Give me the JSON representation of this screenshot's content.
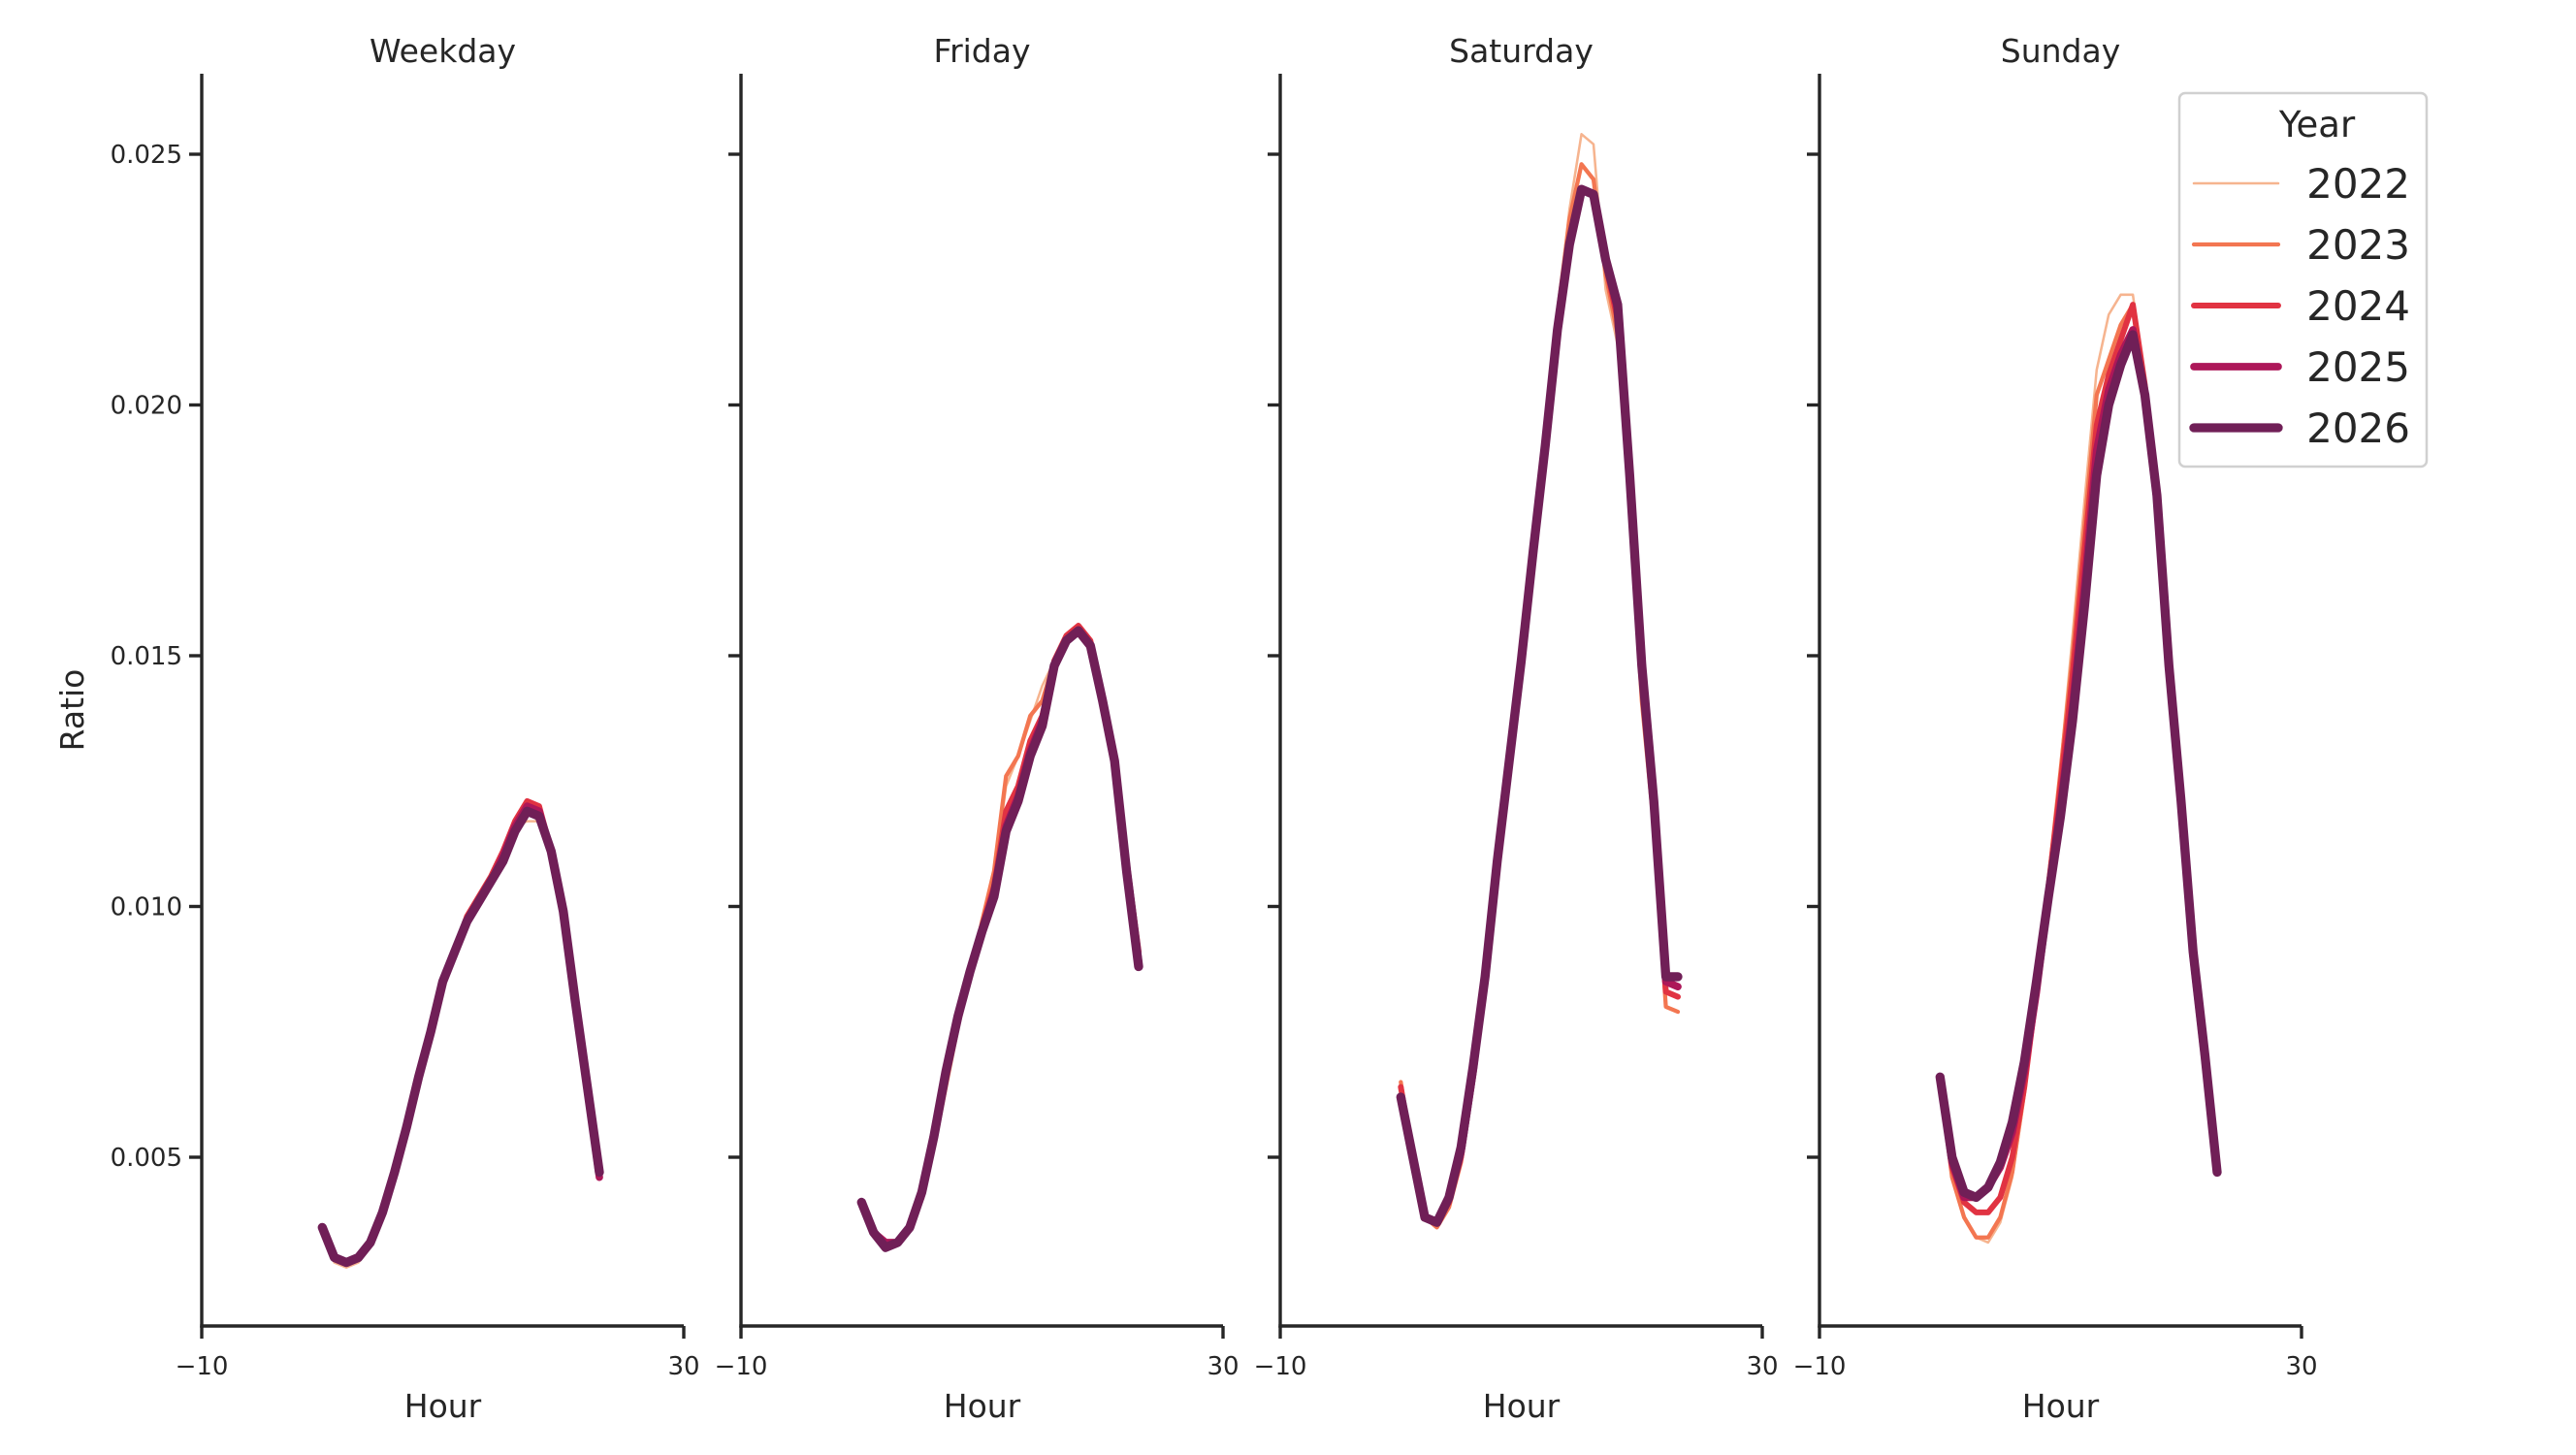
{
  "chart_data": {
    "type": "line",
    "title": "",
    "xlabel": "Hour",
    "ylabel": "Ratio",
    "xlim": [
      -10,
      30
    ],
    "ylim": [
      0.0017,
      0.0266
    ],
    "x_ticks": [
      -10,
      30
    ],
    "y_ticks": [
      0.005,
      0.01,
      0.015,
      0.02,
      0.025
    ],
    "y_tick_labels": [
      "0.005",
      "0.010",
      "0.015",
      "0.020",
      "0.025"
    ],
    "x_tick_labels": [
      "−10",
      "30"
    ],
    "grid": false,
    "legend": {
      "title": "Year",
      "position": "upper right",
      "entries": [
        {
          "label": "2022",
          "color": "#f6b48f",
          "width": 1.5
        },
        {
          "label": "2023",
          "color": "#f37651",
          "width": 2.5
        },
        {
          "label": "2024",
          "color": "#e13342",
          "width": 3.5
        },
        {
          "label": "2025",
          "color": "#ad1759",
          "width": 4.5
        },
        {
          "label": "2026",
          "color": "#701f57",
          "width": 5.5
        }
      ]
    },
    "x": [
      0,
      1,
      2,
      3,
      4,
      5,
      6,
      7,
      8,
      9,
      10,
      11,
      12,
      13,
      14,
      15,
      16,
      17,
      18,
      19,
      20,
      21,
      22,
      23
    ],
    "panels": [
      {
        "title": "Weekday",
        "series": [
          {
            "name": "2022",
            "values": [
              0.0036,
              0.0029,
              0.0028,
              0.0029,
              0.0032,
              0.0038,
              0.0046,
              0.0055,
              0.0065,
              0.0074,
              0.0085,
              0.0091,
              0.0098,
              0.0102,
              0.0106,
              0.011,
              0.0116,
              0.0117,
              0.0117,
              0.0111,
              0.0099,
              0.0081,
              0.0064,
              0.0046
            ]
          },
          {
            "name": "2023",
            "values": [
              0.0036,
              0.003,
              0.0029,
              0.003,
              0.0033,
              0.0039,
              0.0047,
              0.0056,
              0.0066,
              0.0075,
              0.0085,
              0.0091,
              0.0098,
              0.0102,
              0.0106,
              0.0111,
              0.0117,
              0.0121,
              0.012,
              0.0111,
              0.0099,
              0.0081,
              0.0064,
              0.0046
            ]
          },
          {
            "name": "2024",
            "values": [
              0.0036,
              0.003,
              0.0029,
              0.003,
              0.0033,
              0.0039,
              0.0047,
              0.0056,
              0.0066,
              0.0075,
              0.0085,
              0.0091,
              0.0098,
              0.0102,
              0.0106,
              0.0111,
              0.0117,
              0.0121,
              0.012,
              0.0111,
              0.0099,
              0.0081,
              0.0064,
              0.0046
            ]
          },
          {
            "name": "2025",
            "values": [
              0.0036,
              0.003,
              0.0029,
              0.003,
              0.0033,
              0.0039,
              0.0047,
              0.0056,
              0.0066,
              0.0075,
              0.0085,
              0.0091,
              0.0097,
              0.0101,
              0.0105,
              0.011,
              0.0116,
              0.012,
              0.0119,
              0.0111,
              0.0099,
              0.0081,
              0.0064,
              0.0046
            ]
          },
          {
            "name": "2026",
            "values": [
              0.0036,
              0.003,
              0.0029,
              0.003,
              0.0033,
              0.0039,
              0.0047,
              0.0056,
              0.0066,
              0.0075,
              0.0085,
              0.0091,
              0.0097,
              0.0101,
              0.0105,
              0.0109,
              0.0115,
              0.0119,
              0.0118,
              0.0111,
              0.0099,
              0.0081,
              0.0064,
              0.0047
            ]
          }
        ]
      },
      {
        "title": "Friday",
        "series": [
          {
            "name": "2022",
            "values": [
              0.0041,
              0.0035,
              0.0033,
              0.0033,
              0.0036,
              0.0042,
              0.0052,
              0.0064,
              0.0076,
              0.0086,
              0.0096,
              0.0106,
              0.0124,
              0.013,
              0.0137,
              0.0144,
              0.0149,
              0.0153,
              0.0154,
              0.0151,
              0.0141,
              0.0129,
              0.0108,
              0.009
            ]
          },
          {
            "name": "2023",
            "values": [
              0.0041,
              0.0035,
              0.0033,
              0.0033,
              0.0036,
              0.0042,
              0.0052,
              0.0064,
              0.0076,
              0.0086,
              0.0097,
              0.0107,
              0.0126,
              0.013,
              0.0138,
              0.0141,
              0.0149,
              0.0154,
              0.0156,
              0.0153,
              0.0142,
              0.013,
              0.0109,
              0.0091
            ]
          },
          {
            "name": "2024",
            "values": [
              0.0041,
              0.0035,
              0.0033,
              0.0033,
              0.0036,
              0.0042,
              0.0053,
              0.0066,
              0.0078,
              0.0087,
              0.0096,
              0.0104,
              0.0119,
              0.0124,
              0.0133,
              0.0138,
              0.0149,
              0.0154,
              0.0156,
              0.0153,
              0.0142,
              0.013,
              0.0109,
              0.0091
            ]
          },
          {
            "name": "2025",
            "values": [
              0.0041,
              0.0035,
              0.0033,
              0.0033,
              0.0036,
              0.0043,
              0.0054,
              0.0067,
              0.0078,
              0.0087,
              0.0095,
              0.0103,
              0.0116,
              0.0122,
              0.0131,
              0.0137,
              0.0148,
              0.0153,
              0.0155,
              0.0152,
              0.0141,
              0.0129,
              0.0108,
              0.0089
            ]
          },
          {
            "name": "2026",
            "values": [
              0.0041,
              0.0035,
              0.0032,
              0.0033,
              0.0036,
              0.0043,
              0.0054,
              0.0067,
              0.0078,
              0.0087,
              0.0095,
              0.0102,
              0.0115,
              0.0121,
              0.013,
              0.0136,
              0.0148,
              0.0153,
              0.0155,
              0.0152,
              0.0141,
              0.0129,
              0.0107,
              0.0088
            ]
          }
        ]
      },
      {
        "title": "Saturday",
        "series": [
          {
            "name": "2022",
            "values": [
              0.0064,
              0.0049,
              0.0038,
              0.0036,
              0.004,
              0.0049,
              0.0066,
              0.0085,
              0.0108,
              0.0128,
              0.0148,
              0.017,
              0.0191,
              0.0218,
              0.0239,
              0.0254,
              0.0252,
              0.0223,
              0.0212,
              0.018,
              0.014,
              0.0115,
              0.008,
              0.0079
            ]
          },
          {
            "name": "2023",
            "values": [
              0.0065,
              0.0049,
              0.0038,
              0.0036,
              0.004,
              0.0049,
              0.0065,
              0.0084,
              0.0107,
              0.0128,
              0.0148,
              0.017,
              0.0191,
              0.0218,
              0.0237,
              0.0248,
              0.0245,
              0.0226,
              0.0214,
              0.018,
              0.0141,
              0.0116,
              0.008,
              0.0079
            ]
          },
          {
            "name": "2024",
            "values": [
              0.0064,
              0.005,
              0.0038,
              0.0037,
              0.0041,
              0.005,
              0.0066,
              0.0085,
              0.0108,
              0.0129,
              0.0149,
              0.0171,
              0.0192,
              0.0216,
              0.0233,
              0.0243,
              0.0242,
              0.0228,
              0.0217,
              0.0183,
              0.0145,
              0.0118,
              0.0083,
              0.0082
            ]
          },
          {
            "name": "2025",
            "values": [
              0.0062,
              0.005,
              0.0038,
              0.0037,
              0.0042,
              0.0051,
              0.0067,
              0.0086,
              0.0109,
              0.0129,
              0.0149,
              0.0171,
              0.0192,
              0.0215,
              0.0232,
              0.0243,
              0.0242,
              0.0229,
              0.0219,
              0.0185,
              0.0147,
              0.012,
              0.0085,
              0.0084
            ]
          },
          {
            "name": "2026",
            "values": [
              0.0062,
              0.005,
              0.0038,
              0.0037,
              0.0042,
              0.0052,
              0.0068,
              0.0086,
              0.0109,
              0.0129,
              0.0149,
              0.0171,
              0.0192,
              0.0215,
              0.0232,
              0.0243,
              0.0242,
              0.0229,
              0.022,
              0.0186,
              0.0148,
              0.0121,
              0.0086,
              0.0086
            ]
          }
        ]
      },
      {
        "title": "Sunday",
        "series": [
          {
            "name": "2022",
            "values": [
              0.0065,
              0.0046,
              0.0038,
              0.0034,
              0.0033,
              0.0037,
              0.0046,
              0.0062,
              0.0082,
              0.0105,
              0.0128,
              0.0154,
              0.0181,
              0.0207,
              0.0218,
              0.0222,
              0.0222,
              0.0205,
              0.0181,
              0.0148,
              0.012,
              0.009,
              0.0069,
              0.0047
            ]
          },
          {
            "name": "2023",
            "values": [
              0.0065,
              0.0046,
              0.0038,
              0.0034,
              0.0034,
              0.0038,
              0.0047,
              0.0063,
              0.0083,
              0.0105,
              0.0127,
              0.015,
              0.0176,
              0.0202,
              0.0209,
              0.0216,
              0.022,
              0.0204,
              0.0181,
              0.0148,
              0.012,
              0.009,
              0.0069,
              0.0047
            ]
          },
          {
            "name": "2024",
            "values": [
              0.0066,
              0.0048,
              0.0041,
              0.0039,
              0.0039,
              0.0042,
              0.005,
              0.0064,
              0.0083,
              0.0104,
              0.0124,
              0.0146,
              0.0171,
              0.0196,
              0.0206,
              0.0213,
              0.022,
              0.0204,
              0.0181,
              0.0148,
              0.012,
              0.009,
              0.0069,
              0.0047
            ]
          },
          {
            "name": "2025",
            "values": [
              0.0066,
              0.0049,
              0.0042,
              0.0042,
              0.0044,
              0.0048,
              0.0055,
              0.0067,
              0.0083,
              0.0102,
              0.012,
              0.014,
              0.0164,
              0.0191,
              0.0203,
              0.021,
              0.0215,
              0.0202,
              0.0181,
              0.0148,
              0.012,
              0.009,
              0.0069,
              0.0047
            ]
          },
          {
            "name": "2026",
            "values": [
              0.0066,
              0.005,
              0.0043,
              0.0042,
              0.0044,
              0.0049,
              0.0057,
              0.0069,
              0.0085,
              0.0102,
              0.0118,
              0.0137,
              0.016,
              0.0186,
              0.02,
              0.0208,
              0.0214,
              0.0202,
              0.0182,
              0.0148,
              0.0121,
              0.0091,
              0.007,
              0.0047
            ]
          }
        ]
      }
    ]
  }
}
